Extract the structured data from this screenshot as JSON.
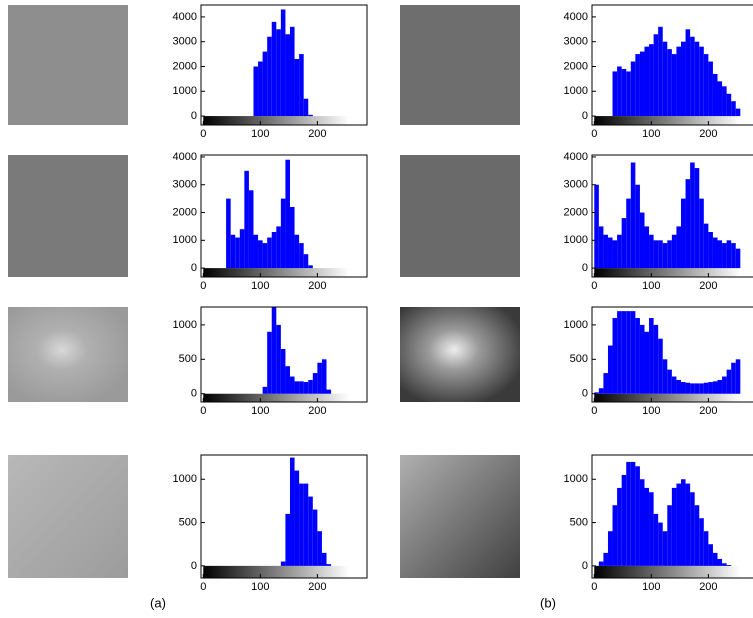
{
  "chart_data": [
    {
      "type": "histogram",
      "color": "#0000ff",
      "xlim": [
        -4,
        287
      ],
      "ylim": [
        -360,
        4480
      ],
      "xticks": [
        0,
        100,
        200
      ],
      "yticks": [
        0,
        1000,
        2000,
        3000,
        4000
      ],
      "bins": [
        0,
        8,
        16,
        24,
        32,
        40,
        48,
        56,
        64,
        72,
        80,
        88,
        96,
        104,
        112,
        120,
        128,
        136,
        144,
        152,
        160,
        168,
        176,
        184,
        192,
        200,
        208,
        216,
        224,
        232,
        240,
        248,
        256
      ],
      "values": [
        0,
        0,
        0,
        0,
        0,
        0,
        0,
        0,
        0,
        0,
        0,
        2000,
        2200,
        2600,
        3200,
        3800,
        3500,
        4300,
        3300,
        3600,
        2300,
        2500,
        700,
        50,
        0,
        0,
        0,
        0,
        0,
        0,
        0,
        0
      ]
    },
    {
      "type": "histogram",
      "color": "#0000ff",
      "xlim": [
        -4,
        287
      ],
      "ylim": [
        -360,
        4480
      ],
      "xticks": [
        0,
        100,
        200
      ],
      "yticks": [
        0,
        1000,
        2000,
        3000,
        4000
      ],
      "bins": [
        0,
        8,
        16,
        24,
        32,
        40,
        48,
        56,
        64,
        72,
        80,
        88,
        96,
        104,
        112,
        120,
        128,
        136,
        144,
        152,
        160,
        168,
        176,
        184,
        192,
        200,
        208,
        216,
        224,
        232,
        240,
        248,
        256
      ],
      "values": [
        0,
        0,
        0,
        0,
        1800,
        2000,
        1900,
        1800,
        2200,
        2500,
        2600,
        2800,
        2900,
        3300,
        3600,
        3000,
        2700,
        2500,
        2800,
        3000,
        3500,
        3200,
        3000,
        2800,
        2500,
        2200,
        1700,
        1400,
        1200,
        900,
        600,
        300
      ]
    },
    {
      "type": "histogram",
      "color": "#0000ff",
      "xlim": [
        -4,
        287
      ],
      "ylim": [
        -320,
        4070
      ],
      "xticks": [
        0,
        100,
        200
      ],
      "yticks": [
        0,
        1000,
        2000,
        3000,
        4000
      ],
      "bins": [
        0,
        8,
        16,
        24,
        32,
        40,
        48,
        56,
        64,
        72,
        80,
        88,
        96,
        104,
        112,
        120,
        128,
        136,
        144,
        152,
        160,
        168,
        176,
        184,
        192,
        200,
        208,
        216,
        224,
        232,
        240,
        248,
        256
      ],
      "values": [
        0,
        0,
        0,
        0,
        0,
        2500,
        1200,
        1100,
        1400,
        3500,
        2800,
        1200,
        1000,
        900,
        1100,
        1300,
        1500,
        2500,
        3900,
        2200,
        1200,
        900,
        500,
        100,
        0,
        0,
        0,
        0,
        0,
        0,
        0,
        0
      ]
    },
    {
      "type": "histogram",
      "color": "#0000ff",
      "xlim": [
        -4,
        287
      ],
      "ylim": [
        -320,
        4070
      ],
      "xticks": [
        0,
        100,
        200
      ],
      "yticks": [
        0,
        1000,
        2000,
        3000,
        4000
      ],
      "bins": [
        0,
        8,
        16,
        24,
        32,
        40,
        48,
        56,
        64,
        72,
        80,
        88,
        96,
        104,
        112,
        120,
        128,
        136,
        144,
        152,
        160,
        168,
        176,
        184,
        192,
        200,
        208,
        216,
        224,
        232,
        240,
        248,
        256
      ],
      "values": [
        3000,
        1500,
        1200,
        1100,
        1000,
        1200,
        1800,
        2500,
        3800,
        3000,
        2000,
        1500,
        1200,
        1000,
        1000,
        900,
        1000,
        1200,
        1500,
        2500,
        3200,
        3800,
        3600,
        2500,
        1600,
        1300,
        1100,
        1000,
        900,
        1000,
        900,
        700
      ]
    },
    {
      "type": "histogram",
      "color": "#0000ff",
      "xlim": [
        -4,
        287
      ],
      "ylim": [
        -120,
        1260
      ],
      "xticks": [
        0,
        100,
        200
      ],
      "yticks": [
        0,
        500,
        1000
      ],
      "bins": [
        0,
        8,
        16,
        24,
        32,
        40,
        48,
        56,
        64,
        72,
        80,
        88,
        96,
        104,
        112,
        120,
        128,
        136,
        144,
        152,
        160,
        168,
        176,
        184,
        192,
        200,
        208,
        216,
        224,
        232,
        240,
        248,
        256
      ],
      "values": [
        0,
        0,
        0,
        0,
        0,
        0,
        0,
        0,
        0,
        0,
        0,
        0,
        0,
        100,
        900,
        1260,
        1000,
        650,
        400,
        250,
        180,
        180,
        170,
        200,
        300,
        450,
        500,
        60,
        0,
        0,
        0,
        0
      ]
    },
    {
      "type": "histogram",
      "color": "#0000ff",
      "xlim": [
        -4,
        287
      ],
      "ylim": [
        -120,
        1260
      ],
      "xticks": [
        0,
        100,
        200
      ],
      "yticks": [
        0,
        500,
        1000
      ],
      "bins": [
        0,
        8,
        16,
        24,
        32,
        40,
        48,
        56,
        64,
        72,
        80,
        88,
        96,
        104,
        112,
        120,
        128,
        136,
        144,
        152,
        160,
        168,
        176,
        184,
        192,
        200,
        208,
        216,
        224,
        232,
        240,
        248,
        256
      ],
      "values": [
        20,
        80,
        300,
        700,
        1100,
        1200,
        1200,
        1200,
        1200,
        1100,
        1000,
        900,
        1100,
        1000,
        800,
        500,
        350,
        250,
        200,
        170,
        160,
        150,
        150,
        150,
        160,
        170,
        180,
        200,
        250,
        350,
        450,
        500
      ]
    },
    {
      "type": "histogram",
      "color": "#0000ff",
      "xlim": [
        -4,
        287
      ],
      "ylim": [
        -140,
        1280
      ],
      "xticks": [
        0,
        100,
        200
      ],
      "yticks": [
        0,
        500,
        1000
      ],
      "bins": [
        0,
        8,
        16,
        24,
        32,
        40,
        48,
        56,
        64,
        72,
        80,
        88,
        96,
        104,
        112,
        120,
        128,
        136,
        144,
        152,
        160,
        168,
        176,
        184,
        192,
        200,
        208,
        216,
        224,
        232,
        240,
        248,
        256
      ],
      "values": [
        0,
        0,
        0,
        0,
        0,
        0,
        0,
        0,
        0,
        0,
        0,
        0,
        0,
        0,
        0,
        0,
        0,
        50,
        600,
        1250,
        1100,
        950,
        950,
        800,
        650,
        400,
        150,
        20,
        0,
        0,
        0,
        0
      ]
    },
    {
      "type": "histogram",
      "color": "#0000ff",
      "xlim": [
        -4,
        287
      ],
      "ylim": [
        -140,
        1280
      ],
      "xticks": [
        0,
        100,
        200
      ],
      "yticks": [
        0,
        500,
        1000
      ],
      "bins": [
        0,
        8,
        16,
        24,
        32,
        40,
        48,
        56,
        64,
        72,
        80,
        88,
        96,
        104,
        112,
        120,
        128,
        136,
        144,
        152,
        160,
        168,
        176,
        184,
        192,
        200,
        208,
        216,
        224,
        232,
        240,
        248,
        256
      ],
      "values": [
        0,
        50,
        150,
        400,
        700,
        900,
        1050,
        1200,
        1200,
        1150,
        1000,
        900,
        850,
        600,
        500,
        400,
        700,
        900,
        950,
        1000,
        950,
        850,
        700,
        550,
        400,
        250,
        150,
        80,
        30,
        10,
        0,
        0
      ]
    }
  ],
  "captions": [
    "(a)",
    "(b)"
  ]
}
